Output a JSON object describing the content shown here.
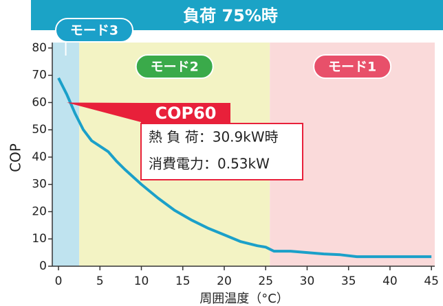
{
  "chart_data": {
    "type": "line",
    "title": "負荷 75%時",
    "xlabel": "周囲温度（°C）",
    "ylabel": "COP",
    "x": [
      0,
      1,
      2,
      3,
      4,
      5,
      6,
      7,
      8,
      10,
      12,
      14,
      16,
      18,
      20,
      22,
      24,
      25,
      26,
      28,
      30,
      32,
      34,
      36,
      40,
      45
    ],
    "series": [
      {
        "color": "#1ba0c9",
        "values": [
          69,
          63,
          56,
          50,
          46,
          44,
          42,
          38.5,
          35.5,
          30,
          25,
          20.5,
          17,
          14,
          11.5,
          9,
          7.5,
          7,
          5.5,
          5.5,
          5,
          4.5,
          4.2,
          3.5,
          3.5,
          3.5
        ]
      }
    ],
    "xlim": [
      -0.75,
      45.4
    ],
    "ylim": [
      0,
      82
    ],
    "xticks": [
      0,
      5,
      10,
      15,
      20,
      25,
      30,
      35,
      40,
      45
    ],
    "yticks": [
      0,
      10,
      20,
      30,
      40,
      50,
      60,
      70,
      80
    ],
    "regions": [
      {
        "label": "モード3",
        "start": -0.75,
        "end": 2.5,
        "color": "#bfe3ef",
        "badge_color": "#1ba0c9"
      },
      {
        "label": "モード2",
        "start": 2.5,
        "end": 25.5,
        "color": "#f3f3c4",
        "badge_color": "#3aaa4a"
      },
      {
        "label": "モード1",
        "start": 25.5,
        "end": 45.4,
        "color": "#fadada",
        "badge_color": "#e8506a"
      }
    ],
    "annotation": {
      "title": "COP60",
      "lines": [
        "熱 負 荷：30.9kW時",
        "消費電力：0.53kW"
      ],
      "x": 1,
      "y": 60
    }
  }
}
